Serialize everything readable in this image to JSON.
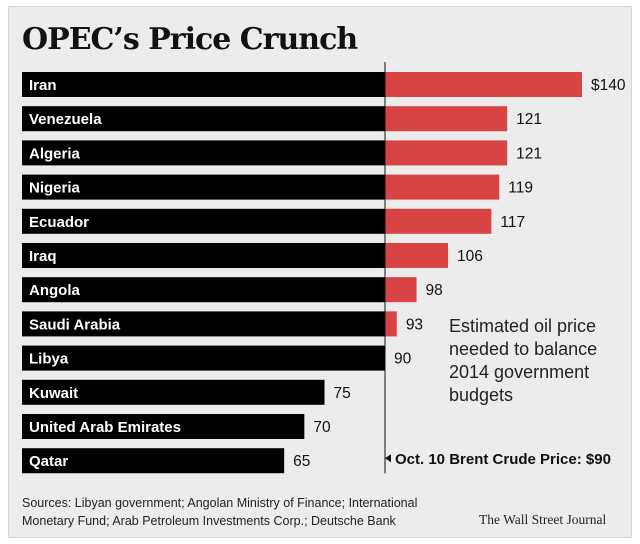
{
  "title": "OPEC’s Price Crunch",
  "chart_data": {
    "type": "bar",
    "orientation": "horizontal",
    "title": "OPEC’s Price Crunch",
    "categories": [
      "Iran",
      "Venezuela",
      "Algeria",
      "Nigeria",
      "Ecuador",
      "Iraq",
      "Angola",
      "Saudi Arabia",
      "Libya",
      "Kuwait",
      "United Arab Emirates",
      "Qatar"
    ],
    "values": [
      140,
      121,
      121,
      119,
      117,
      106,
      98,
      93,
      90,
      75,
      70,
      65
    ],
    "value_labels": [
      "$140",
      "121",
      "121",
      "119",
      "117",
      "106",
      "98",
      "93",
      "90",
      "75",
      "70",
      "65"
    ],
    "reference": {
      "value": 90,
      "label": "Oct. 10 Brent Crude Price: $90"
    },
    "annotation": [
      "Estimated oil price",
      "needed to balance",
      "2014 government",
      "budgets"
    ],
    "colors": {
      "below_reference": "#000000",
      "above_reference": "#d84444"
    }
  },
  "sources": "Sources: Libyan government; Angolan Ministry of Finance; International Monetary Fund; Arab Petroleum Investments Corp.; Deutsche Bank",
  "credit": "The Wall Street Journal"
}
